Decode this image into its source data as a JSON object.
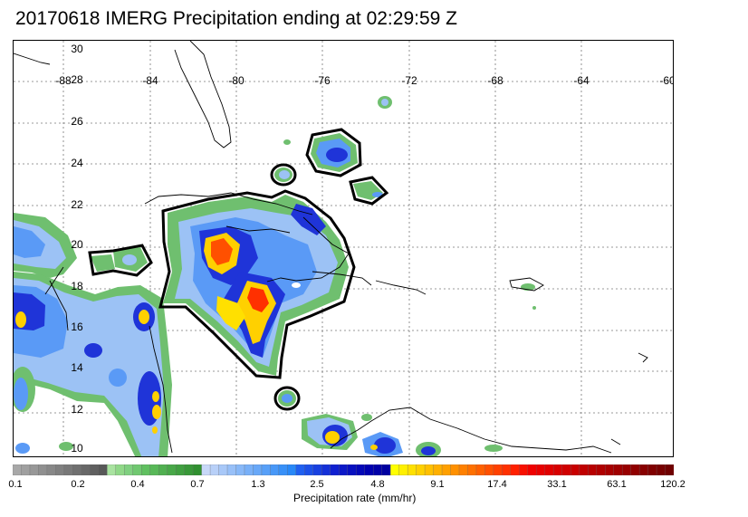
{
  "title": "20170618 IMERG Precipitation ending at 02:29:59 Z",
  "map": {
    "lon_labels": [
      "-88",
      "-84",
      "-80",
      "-76",
      "-72",
      "-68",
      "-64",
      "-60"
    ],
    "lat_labels": [
      "30",
      "28",
      "26",
      "24",
      "22",
      "20",
      "18",
      "16",
      "14",
      "12",
      "10"
    ]
  },
  "colorbar": {
    "title": "Precipitation rate (mm/hr)",
    "labels": [
      "0.1",
      "0.2",
      "0.4",
      "0.7",
      "1.3",
      "2.5",
      "4.8",
      "9.1",
      "17.4",
      "33.1",
      "63.1",
      "120.2"
    ],
    "colors": [
      "#a8a8a8",
      "#a0a0a0",
      "#989898",
      "#909090",
      "#888888",
      "#808080",
      "#787878",
      "#707070",
      "#686868",
      "#606060",
      "#585858",
      "#a9e3a0",
      "#90d888",
      "#80d080",
      "#70c870",
      "#60c060",
      "#58b858",
      "#50b050",
      "#48a848",
      "#40a040",
      "#389838",
      "#309030",
      "#c8d8f8",
      "#b8d0f8",
      "#a8c8f8",
      "#98c0f8",
      "#88b8f8",
      "#78b0f8",
      "#68a8f8",
      "#58a0f8",
      "#4898f8",
      "#3890f8",
      "#2888f8",
      "#2060f0",
      "#1c50e8",
      "#1840e0",
      "#1430d8",
      "#1020d0",
      "#0c18c8",
      "#0810c0",
      "#0408b8",
      "#0000b0",
      "#0000a8",
      "#0000a0",
      "#ffff00",
      "#fff000",
      "#ffe000",
      "#ffd000",
      "#ffc000",
      "#ffb000",
      "#ffa000",
      "#ff9000",
      "#ff8000",
      "#ff7000",
      "#ff6000",
      "#ff5000",
      "#ff4000",
      "#ff3000",
      "#ff2000",
      "#f81000",
      "#f00000",
      "#e80000",
      "#e00000",
      "#d80000",
      "#d00000",
      "#c80000",
      "#c00000",
      "#b80000",
      "#b00000",
      "#a80000",
      "#a00000",
      "#980000",
      "#900000",
      "#880000",
      "#800000",
      "#780000",
      "#700000"
    ]
  }
}
